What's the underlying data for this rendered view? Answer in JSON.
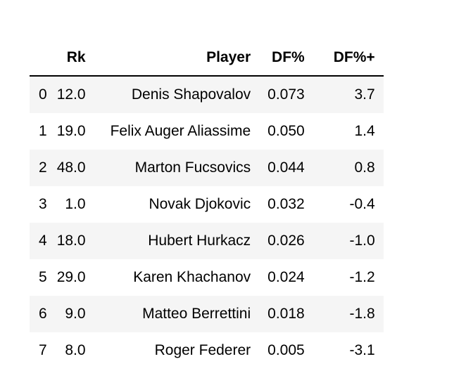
{
  "table": {
    "columns": [
      "",
      "Rk",
      "Player",
      "DF%",
      "DF%+"
    ],
    "rows": [
      {
        "index": "0",
        "rk": "12.0",
        "player": "Denis Shapovalov",
        "df_pct": "0.073",
        "df_pct_plus": "3.7"
      },
      {
        "index": "1",
        "rk": "19.0",
        "player": "Felix Auger Aliassime",
        "df_pct": "0.050",
        "df_pct_plus": "1.4"
      },
      {
        "index": "2",
        "rk": "48.0",
        "player": "Marton Fucsovics",
        "df_pct": "0.044",
        "df_pct_plus": "0.8"
      },
      {
        "index": "3",
        "rk": "1.0",
        "player": "Novak Djokovic",
        "df_pct": "0.032",
        "df_pct_plus": "-0.4"
      },
      {
        "index": "4",
        "rk": "18.0",
        "player": "Hubert Hurkacz",
        "df_pct": "0.026",
        "df_pct_plus": "-1.0"
      },
      {
        "index": "5",
        "rk": "29.0",
        "player": "Karen Khachanov",
        "df_pct": "0.024",
        "df_pct_plus": "-1.2"
      },
      {
        "index": "6",
        "rk": "9.0",
        "player": "Matteo Berrettini",
        "df_pct": "0.018",
        "df_pct_plus": "-1.8"
      },
      {
        "index": "7",
        "rk": "8.0",
        "player": "Roger Federer",
        "df_pct": "0.005",
        "df_pct_plus": "-3.1"
      }
    ]
  },
  "colors": {
    "stripe": "#f5f5f5",
    "background": "#ffffff",
    "text": "#000000",
    "header_rule": "#000000"
  }
}
